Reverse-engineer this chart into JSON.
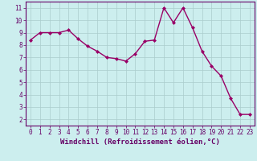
{
  "x": [
    0,
    1,
    2,
    3,
    4,
    5,
    6,
    7,
    8,
    9,
    10,
    11,
    12,
    13,
    14,
    15,
    16,
    17,
    18,
    19,
    20,
    21,
    22,
    23
  ],
  "y": [
    8.4,
    9.0,
    9.0,
    9.0,
    9.2,
    8.5,
    7.9,
    7.5,
    7.0,
    6.9,
    6.7,
    7.3,
    8.3,
    8.4,
    11.0,
    9.8,
    11.0,
    9.4,
    7.5,
    6.3,
    5.5,
    3.7,
    2.4,
    2.4
  ],
  "line_color": "#990066",
  "marker": "D",
  "marker_size": 2,
  "bg_color": "#cceeee",
  "grid_color": "#aacccc",
  "xlabel": "Windchill (Refroidissement éolien,°C)",
  "xlim": [
    -0.5,
    23.5
  ],
  "ylim": [
    1.5,
    11.5
  ],
  "yticks": [
    2,
    3,
    4,
    5,
    6,
    7,
    8,
    9,
    10,
    11
  ],
  "xticks": [
    0,
    1,
    2,
    3,
    4,
    5,
    6,
    7,
    8,
    9,
    10,
    11,
    12,
    13,
    14,
    15,
    16,
    17,
    18,
    19,
    20,
    21,
    22,
    23
  ],
  "axis_color": "#660066",
  "tick_color": "#660066",
  "xlabel_fontsize": 6.5,
  "tick_fontsize": 5.5,
  "linewidth": 1.0
}
